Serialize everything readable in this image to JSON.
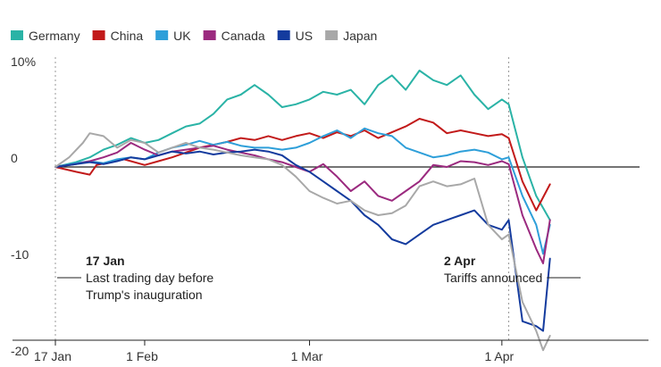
{
  "chart_data": {
    "type": "line",
    "x_ticks": [
      "17 Jan",
      "1 Feb",
      "1 Mar",
      "1 Apr"
    ],
    "y_ticks": [
      "10%",
      "0",
      "-10",
      "-20"
    ],
    "y_tick_values": [
      10,
      0,
      -10,
      -20
    ],
    "ylim": [
      -21,
      12
    ],
    "xlim": [
      0,
      70
    ],
    "x_tick_positions": [
      0,
      13,
      37,
      65
    ],
    "grid": false,
    "legend": "top-left",
    "series": [
      {
        "name": "Germany",
        "color": "#2ab3a6",
        "values": [
          [
            0,
            0
          ],
          [
            3,
            0.5
          ],
          [
            5,
            1
          ],
          [
            7,
            1.8
          ],
          [
            9,
            2.3
          ],
          [
            11,
            3
          ],
          [
            13,
            2.5
          ],
          [
            15,
            2.8
          ],
          [
            17,
            3.5
          ],
          [
            19,
            4.2
          ],
          [
            21,
            4.5
          ],
          [
            23,
            5.5
          ],
          [
            25,
            7
          ],
          [
            27,
            7.5
          ],
          [
            29,
            8.5
          ],
          [
            31,
            7.5
          ],
          [
            33,
            6.2
          ],
          [
            35,
            6.5
          ],
          [
            37,
            7
          ],
          [
            39,
            7.8
          ],
          [
            41,
            7.5
          ],
          [
            43,
            8
          ],
          [
            45,
            6.5
          ],
          [
            47,
            8.5
          ],
          [
            49,
            9.5
          ],
          [
            51,
            8
          ],
          [
            53,
            10
          ],
          [
            55,
            9
          ],
          [
            57,
            8.5
          ],
          [
            59,
            9.5
          ],
          [
            61,
            7.5
          ],
          [
            63,
            6
          ],
          [
            65,
            7
          ],
          [
            66,
            6.5
          ],
          [
            68,
            1
          ],
          [
            70,
            -3
          ],
          [
            72,
            -5.5
          ]
        ]
      },
      {
        "name": "China",
        "color": "#c21a1a",
        "values": [
          [
            0,
            0
          ],
          [
            3,
            -0.5
          ],
          [
            5,
            -0.8
          ],
          [
            6,
            0.2
          ],
          [
            8,
            0.5
          ],
          [
            10,
            0.8
          ],
          [
            13,
            0.2
          ],
          [
            15,
            0.6
          ],
          [
            17,
            1
          ],
          [
            19,
            1.5
          ],
          [
            21,
            2
          ],
          [
            23,
            2.3
          ],
          [
            25,
            2.6
          ],
          [
            27,
            3
          ],
          [
            29,
            2.8
          ],
          [
            31,
            3.2
          ],
          [
            33,
            2.8
          ],
          [
            35,
            3.2
          ],
          [
            37,
            3.5
          ],
          [
            39,
            3
          ],
          [
            41,
            3.6
          ],
          [
            43,
            3.2
          ],
          [
            45,
            3.8
          ],
          [
            47,
            3
          ],
          [
            49,
            3.6
          ],
          [
            51,
            4.2
          ],
          [
            53,
            5
          ],
          [
            55,
            4.6
          ],
          [
            57,
            3.5
          ],
          [
            59,
            3.8
          ],
          [
            61,
            3.5
          ],
          [
            63,
            3.2
          ],
          [
            65,
            3.4
          ],
          [
            66,
            3
          ],
          [
            68,
            -1.5
          ],
          [
            70,
            -4.5
          ],
          [
            72,
            -1.8
          ]
        ]
      },
      {
        "name": "UK",
        "color": "#2e9fd9",
        "values": [
          [
            0,
            0
          ],
          [
            3,
            0.4
          ],
          [
            5,
            0.6
          ],
          [
            7,
            0.4
          ],
          [
            9,
            0.8
          ],
          [
            11,
            1
          ],
          [
            13,
            0.8
          ],
          [
            15,
            1.5
          ],
          [
            17,
            2
          ],
          [
            19,
            2.3
          ],
          [
            21,
            2.7
          ],
          [
            23,
            2.3
          ],
          [
            25,
            2.6
          ],
          [
            27,
            2.2
          ],
          [
            29,
            2
          ],
          [
            31,
            2
          ],
          [
            33,
            1.8
          ],
          [
            35,
            2
          ],
          [
            37,
            2.5
          ],
          [
            39,
            3.2
          ],
          [
            41,
            3.8
          ],
          [
            43,
            3
          ],
          [
            45,
            4
          ],
          [
            47,
            3.5
          ],
          [
            49,
            3.2
          ],
          [
            51,
            2
          ],
          [
            53,
            1.5
          ],
          [
            55,
            1
          ],
          [
            57,
            1.2
          ],
          [
            59,
            1.6
          ],
          [
            61,
            1.8
          ],
          [
            63,
            1.5
          ],
          [
            65,
            0.8
          ],
          [
            66,
            1
          ],
          [
            68,
            -3
          ],
          [
            70,
            -6
          ],
          [
            71,
            -9
          ],
          [
            72,
            -6
          ]
        ]
      },
      {
        "name": "Canada",
        "color": "#9b2a7f",
        "values": [
          [
            0,
            0
          ],
          [
            3,
            0.3
          ],
          [
            5,
            0.6
          ],
          [
            7,
            1
          ],
          [
            9,
            1.5
          ],
          [
            11,
            2.5
          ],
          [
            13,
            1.8
          ],
          [
            15,
            1.2
          ],
          [
            17,
            1.6
          ],
          [
            19,
            1.8
          ],
          [
            21,
            2
          ],
          [
            23,
            2.2
          ],
          [
            25,
            1.8
          ],
          [
            27,
            1.5
          ],
          [
            29,
            1.2
          ],
          [
            31,
            0.8
          ],
          [
            33,
            0.5
          ],
          [
            35,
            0
          ],
          [
            37,
            -0.5
          ],
          [
            39,
            0.3
          ],
          [
            41,
            -1
          ],
          [
            43,
            -2.5
          ],
          [
            45,
            -1.5
          ],
          [
            47,
            -3
          ],
          [
            49,
            -3.5
          ],
          [
            51,
            -2.5
          ],
          [
            53,
            -1.5
          ],
          [
            55,
            0.2
          ],
          [
            57,
            0
          ],
          [
            59,
            0.6
          ],
          [
            61,
            0.5
          ],
          [
            63,
            0.2
          ],
          [
            65,
            0.6
          ],
          [
            66,
            0.3
          ],
          [
            68,
            -5
          ],
          [
            70,
            -8.5
          ],
          [
            71,
            -10
          ],
          [
            72,
            -5.5
          ]
        ]
      },
      {
        "name": "US",
        "color": "#143b9e",
        "values": [
          [
            0,
            0
          ],
          [
            3,
            0.3
          ],
          [
            5,
            0.5
          ],
          [
            7,
            0.3
          ],
          [
            9,
            0.6
          ],
          [
            11,
            1
          ],
          [
            13,
            0.8
          ],
          [
            15,
            1.2
          ],
          [
            17,
            1.6
          ],
          [
            19,
            1.4
          ],
          [
            21,
            1.6
          ],
          [
            23,
            1.3
          ],
          [
            25,
            1.5
          ],
          [
            27,
            1.6
          ],
          [
            29,
            1.8
          ],
          [
            31,
            1.6
          ],
          [
            33,
            1.2
          ],
          [
            35,
            0.2
          ],
          [
            37,
            -0.5
          ],
          [
            39,
            -1.5
          ],
          [
            41,
            -2.5
          ],
          [
            43,
            -3.5
          ],
          [
            45,
            -5
          ],
          [
            47,
            -6
          ],
          [
            49,
            -7.5
          ],
          [
            51,
            -8
          ],
          [
            53,
            -7
          ],
          [
            55,
            -6
          ],
          [
            57,
            -5.5
          ],
          [
            59,
            -5
          ],
          [
            61,
            -4.5
          ],
          [
            63,
            -6
          ],
          [
            65,
            -6.5
          ],
          [
            66,
            -5.5
          ],
          [
            68,
            -16
          ],
          [
            70,
            -16.5
          ],
          [
            71,
            -17
          ],
          [
            72,
            -9.5
          ]
        ]
      },
      {
        "name": "Japan",
        "color": "#a8a8a8",
        "values": [
          [
            0,
            0
          ],
          [
            2,
            1
          ],
          [
            4,
            2.5
          ],
          [
            5,
            3.5
          ],
          [
            7,
            3.2
          ],
          [
            9,
            2
          ],
          [
            11,
            2.8
          ],
          [
            13,
            2.5
          ],
          [
            15,
            1.5
          ],
          [
            17,
            2
          ],
          [
            19,
            2.5
          ],
          [
            21,
            2
          ],
          [
            23,
            1.8
          ],
          [
            25,
            1.5
          ],
          [
            27,
            1.2
          ],
          [
            29,
            1
          ],
          [
            31,
            0.8
          ],
          [
            33,
            0.2
          ],
          [
            35,
            -1
          ],
          [
            37,
            -2.5
          ],
          [
            39,
            -3.2
          ],
          [
            41,
            -3.8
          ],
          [
            43,
            -3.5
          ],
          [
            45,
            -4.5
          ],
          [
            47,
            -5
          ],
          [
            49,
            -4.8
          ],
          [
            51,
            -4
          ],
          [
            53,
            -2
          ],
          [
            55,
            -1.5
          ],
          [
            57,
            -2
          ],
          [
            59,
            -1.8
          ],
          [
            61,
            -1.2
          ],
          [
            63,
            -6
          ],
          [
            65,
            -7.5
          ],
          [
            66,
            -7
          ],
          [
            68,
            -14
          ],
          [
            70,
            -17
          ],
          [
            71,
            -19
          ],
          [
            72,
            -17.5
          ]
        ]
      }
    ],
    "annotations": [
      {
        "date": "17 Jan",
        "lines": [
          "Last trading day before",
          "Trump's inauguration"
        ]
      },
      {
        "date": "2 Apr",
        "lines": [
          "Tariffs announced"
        ]
      }
    ]
  }
}
